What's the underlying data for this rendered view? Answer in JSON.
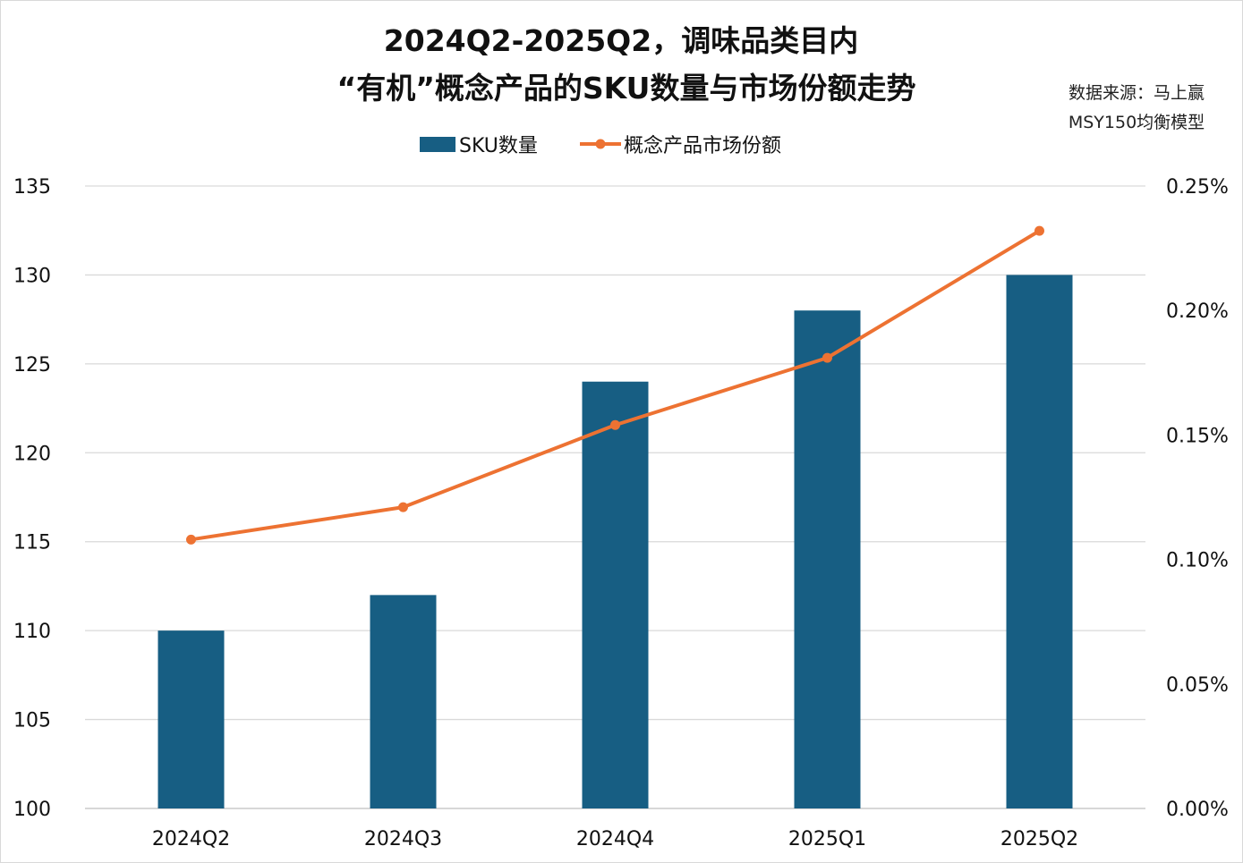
{
  "chart_data": {
    "type": "bar+line",
    "title_lines": [
      "2024Q2-2025Q2，调味品类目内",
      "“有机”概念产品的SKU数量与市场份额走势"
    ],
    "source_lines": [
      "数据来源：马上赢",
      "MSY150均衡模型"
    ],
    "categories": [
      "2024Q2",
      "2024Q3",
      "2024Q4",
      "2025Q1",
      "2025Q2"
    ],
    "series": [
      {
        "name": "SKU数量",
        "type": "bar",
        "axis": "left",
        "color": "#175e83",
        "values": [
          110,
          112,
          124,
          128,
          130
        ]
      },
      {
        "name": "概念产品市场份额",
        "type": "line",
        "axis": "right",
        "color": "#ed7232",
        "values": [
          0.108,
          0.121,
          0.154,
          0.181,
          0.232
        ]
      }
    ],
    "left_axis": {
      "ylim": [
        100,
        135
      ],
      "ticks": [
        "100",
        "105",
        "110",
        "115",
        "120",
        "125",
        "130",
        "135"
      ]
    },
    "right_axis": {
      "ylim": [
        0,
        0.25
      ],
      "unit": "%",
      "ticks": [
        "0.00%",
        "0.05%",
        "0.10%",
        "0.15%",
        "0.20%",
        "0.25%"
      ]
    },
    "grid": true,
    "legend_position": "top"
  }
}
